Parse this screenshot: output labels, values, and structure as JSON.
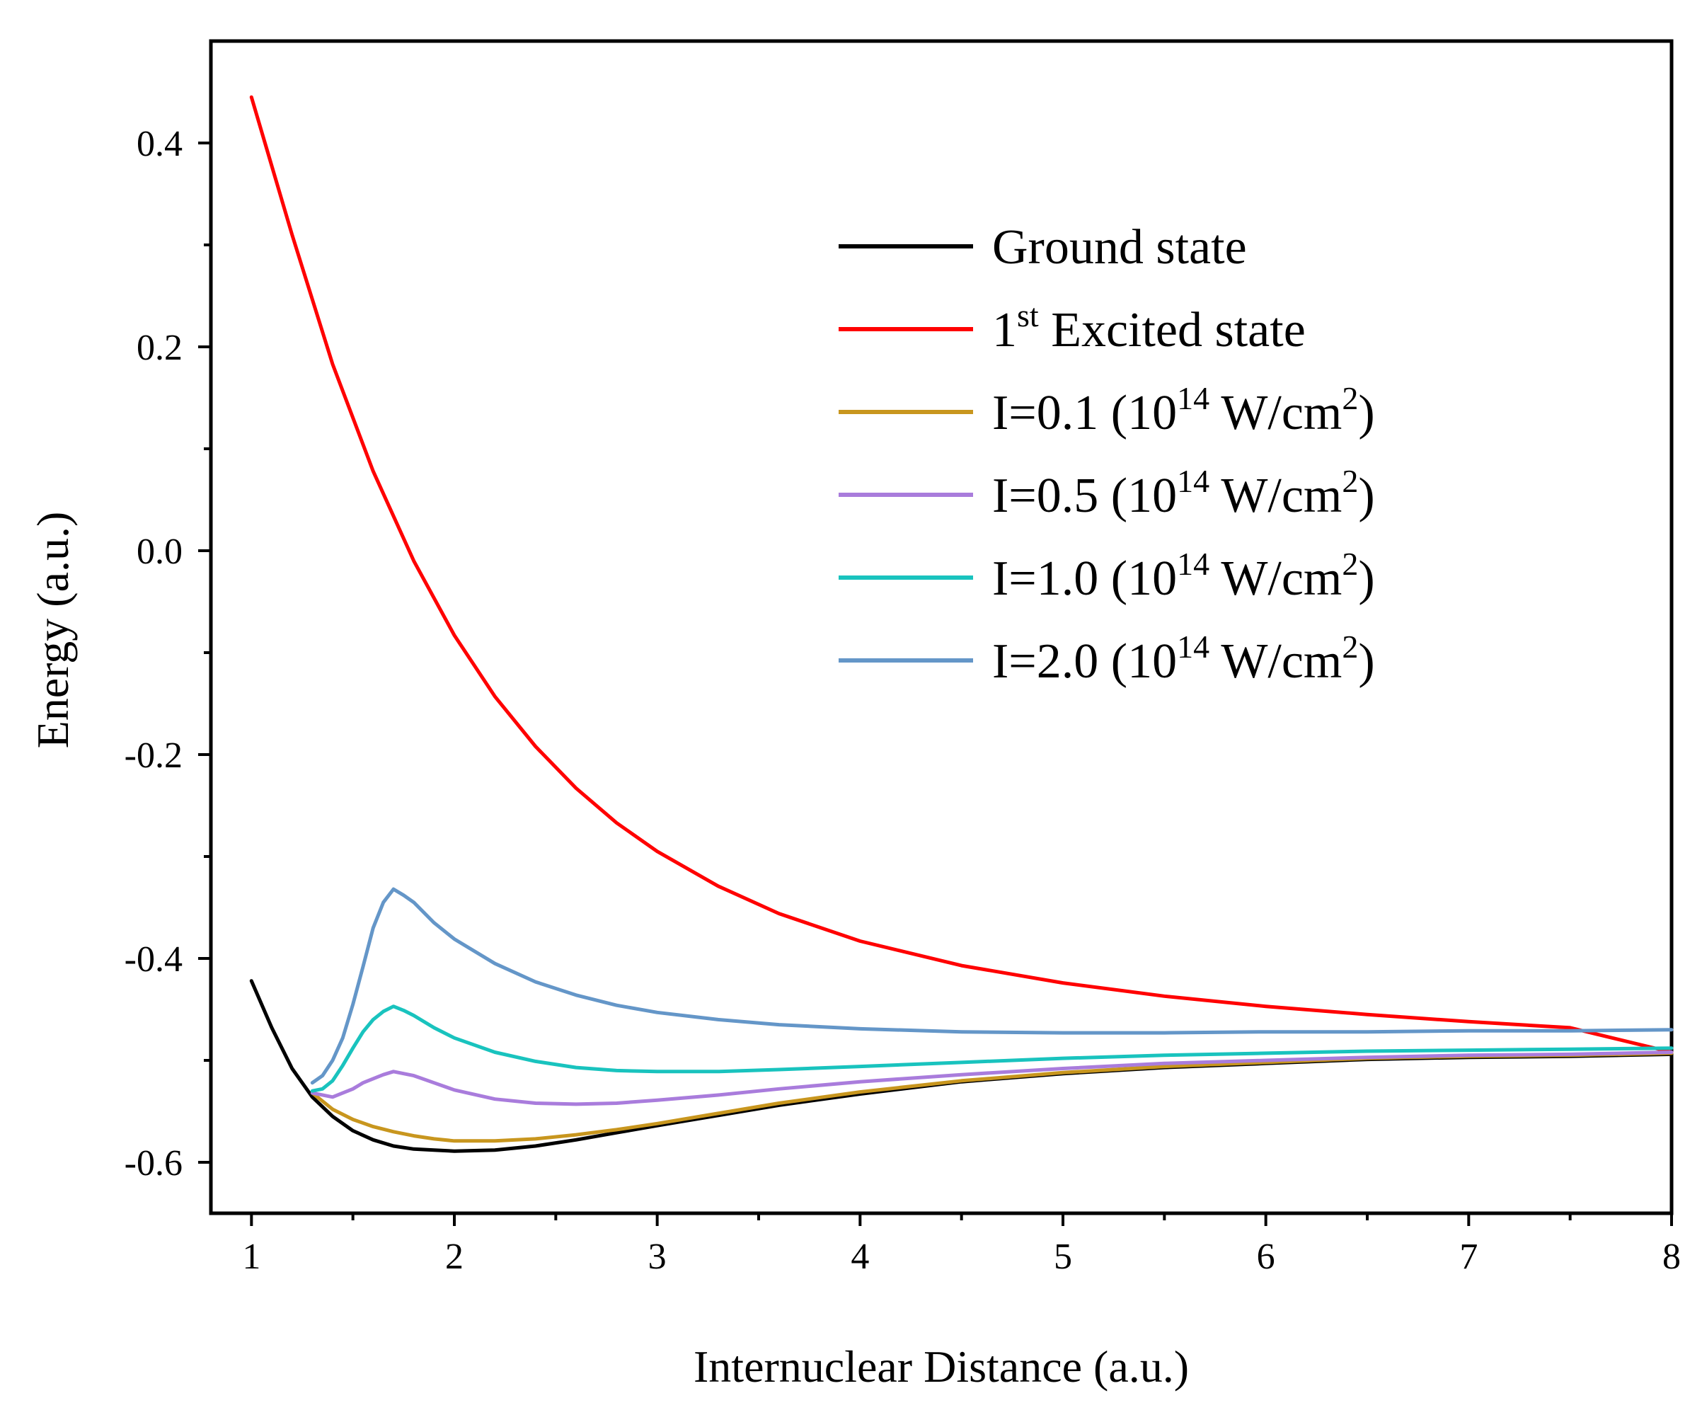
{
  "chart_data": {
    "type": "line",
    "title": "",
    "xlabel": "Internuclear Distance (a.u.)",
    "ylabel": "Energy (a.u.)",
    "xlim": [
      0.8,
      8.0
    ],
    "ylim": [
      -0.65,
      0.5
    ],
    "xticks": [
      1,
      2,
      3,
      4,
      5,
      6,
      7,
      8
    ],
    "xtick_labels": [
      "1",
      "2",
      "3",
      "4",
      "5",
      "6",
      "7",
      "8"
    ],
    "yticks": [
      -0.6,
      -0.4,
      -0.2,
      0.0,
      0.2,
      0.4
    ],
    "ytick_labels": [
      "-0.6",
      "-0.4",
      "-0.2",
      "0.0",
      "0.2",
      "0.4"
    ],
    "grid": false,
    "legend_position": "top-right",
    "series": [
      {
        "name": "Ground state",
        "legend": {
          "main": "Ground state",
          "sup": "",
          "after": ""
        },
        "color": "#000000",
        "points": [
          [
            1.0,
            -0.422
          ],
          [
            1.1,
            -0.468
          ],
          [
            1.2,
            -0.508
          ],
          [
            1.3,
            -0.536
          ],
          [
            1.4,
            -0.555
          ],
          [
            1.5,
            -0.569
          ],
          [
            1.6,
            -0.578
          ],
          [
            1.7,
            -0.584
          ],
          [
            1.8,
            -0.587
          ],
          [
            1.9,
            -0.588
          ],
          [
            2.0,
            -0.589
          ],
          [
            2.2,
            -0.588
          ],
          [
            2.4,
            -0.584
          ],
          [
            2.6,
            -0.578
          ],
          [
            2.8,
            -0.571
          ],
          [
            3.0,
            -0.564
          ],
          [
            3.3,
            -0.554
          ],
          [
            3.6,
            -0.544
          ],
          [
            4.0,
            -0.533
          ],
          [
            4.5,
            -0.521
          ],
          [
            5.0,
            -0.513
          ],
          [
            5.5,
            -0.507
          ],
          [
            6.0,
            -0.503
          ],
          [
            6.5,
            -0.499
          ],
          [
            7.0,
            -0.497
          ],
          [
            7.5,
            -0.496
          ],
          [
            8.0,
            -0.494
          ]
        ]
      },
      {
        "name": "1st Excited state",
        "legend": {
          "main": "1",
          "sup": "st",
          "after": " Excited state"
        },
        "color": "#ff0000",
        "points": [
          [
            1.0,
            0.445
          ],
          [
            1.2,
            0.31
          ],
          [
            1.4,
            0.183
          ],
          [
            1.6,
            0.078
          ],
          [
            1.8,
            -0.01
          ],
          [
            2.0,
            -0.083
          ],
          [
            2.2,
            -0.143
          ],
          [
            2.4,
            -0.192
          ],
          [
            2.6,
            -0.233
          ],
          [
            2.8,
            -0.267
          ],
          [
            3.0,
            -0.295
          ],
          [
            3.3,
            -0.329
          ],
          [
            3.6,
            -0.356
          ],
          [
            4.0,
            -0.383
          ],
          [
            4.5,
            -0.407
          ],
          [
            5.0,
            -0.424
          ],
          [
            5.5,
            -0.437
          ],
          [
            6.0,
            -0.447
          ],
          [
            6.5,
            -0.455
          ],
          [
            7.0,
            -0.462
          ],
          [
            7.5,
            -0.468
          ],
          [
            8.0,
            -0.492
          ]
        ]
      },
      {
        "name": "I=0.1 (10^14 W/cm^2)",
        "legend": {
          "main": "I=0.1 (10",
          "sup": "14",
          "after": " W/cm",
          "sup2": "2",
          "end": ")"
        },
        "color": "#c8961e",
        "points": [
          [
            1.3,
            -0.532
          ],
          [
            1.4,
            -0.548
          ],
          [
            1.5,
            -0.558
          ],
          [
            1.6,
            -0.565
          ],
          [
            1.7,
            -0.57
          ],
          [
            1.8,
            -0.574
          ],
          [
            1.9,
            -0.577
          ],
          [
            2.0,
            -0.579
          ],
          [
            2.2,
            -0.579
          ],
          [
            2.4,
            -0.577
          ],
          [
            2.6,
            -0.573
          ],
          [
            2.8,
            -0.568
          ],
          [
            3.0,
            -0.562
          ],
          [
            3.3,
            -0.552
          ],
          [
            3.6,
            -0.542
          ],
          [
            4.0,
            -0.531
          ],
          [
            4.5,
            -0.52
          ],
          [
            5.0,
            -0.512
          ],
          [
            5.5,
            -0.506
          ],
          [
            6.0,
            -0.502
          ],
          [
            6.5,
            -0.498
          ],
          [
            7.0,
            -0.496
          ],
          [
            7.5,
            -0.495
          ],
          [
            8.0,
            -0.493
          ]
        ]
      },
      {
        "name": "I=0.5 (10^14 W/cm^2)",
        "legend": {
          "main": "I=0.5 (10",
          "sup": "14",
          "after": " W/cm",
          "sup2": "2",
          "end": ")"
        },
        "color": "#a97cdc",
        "points": [
          [
            1.3,
            -0.532
          ],
          [
            1.4,
            -0.536
          ],
          [
            1.45,
            -0.532
          ],
          [
            1.5,
            -0.528
          ],
          [
            1.55,
            -0.522
          ],
          [
            1.6,
            -0.518
          ],
          [
            1.65,
            -0.514
          ],
          [
            1.7,
            -0.511
          ],
          [
            1.75,
            -0.513
          ],
          [
            1.8,
            -0.515
          ],
          [
            1.9,
            -0.522
          ],
          [
            2.0,
            -0.529
          ],
          [
            2.2,
            -0.538
          ],
          [
            2.4,
            -0.542
          ],
          [
            2.6,
            -0.543
          ],
          [
            2.8,
            -0.542
          ],
          [
            3.0,
            -0.539
          ],
          [
            3.3,
            -0.534
          ],
          [
            3.6,
            -0.528
          ],
          [
            4.0,
            -0.521
          ],
          [
            4.5,
            -0.514
          ],
          [
            5.0,
            -0.508
          ],
          [
            5.5,
            -0.503
          ],
          [
            6.0,
            -0.5
          ],
          [
            6.5,
            -0.497
          ],
          [
            7.0,
            -0.495
          ],
          [
            7.5,
            -0.494
          ],
          [
            8.0,
            -0.492
          ]
        ]
      },
      {
        "name": "I=1.0 (10^14 W/cm^2)",
        "legend": {
          "main": "I=1.0 (10",
          "sup": "14",
          "after": " W/cm",
          "sup2": "2",
          "end": ")"
        },
        "color": "#19c3be",
        "points": [
          [
            1.3,
            -0.53
          ],
          [
            1.35,
            -0.528
          ],
          [
            1.4,
            -0.52
          ],
          [
            1.45,
            -0.505
          ],
          [
            1.5,
            -0.488
          ],
          [
            1.55,
            -0.472
          ],
          [
            1.6,
            -0.46
          ],
          [
            1.65,
            -0.452
          ],
          [
            1.7,
            -0.447
          ],
          [
            1.75,
            -0.451
          ],
          [
            1.8,
            -0.456
          ],
          [
            1.9,
            -0.468
          ],
          [
            2.0,
            -0.478
          ],
          [
            2.2,
            -0.492
          ],
          [
            2.4,
            -0.501
          ],
          [
            2.6,
            -0.507
          ],
          [
            2.8,
            -0.51
          ],
          [
            3.0,
            -0.511
          ],
          [
            3.3,
            -0.511
          ],
          [
            3.6,
            -0.509
          ],
          [
            4.0,
            -0.506
          ],
          [
            4.5,
            -0.502
          ],
          [
            5.0,
            -0.498
          ],
          [
            5.5,
            -0.495
          ],
          [
            6.0,
            -0.493
          ],
          [
            6.5,
            -0.491
          ],
          [
            7.0,
            -0.49
          ],
          [
            7.5,
            -0.489
          ],
          [
            8.0,
            -0.488
          ]
        ]
      },
      {
        "name": "I=2.0 (10^14 W/cm^2)",
        "legend": {
          "main": "I=2.0 (10",
          "sup": "14",
          "after": " W/cm",
          "sup2": "2",
          "end": ")"
        },
        "color": "#6496c8",
        "points": [
          [
            1.3,
            -0.522
          ],
          [
            1.35,
            -0.515
          ],
          [
            1.4,
            -0.5
          ],
          [
            1.45,
            -0.478
          ],
          [
            1.5,
            -0.445
          ],
          [
            1.55,
            -0.408
          ],
          [
            1.6,
            -0.37
          ],
          [
            1.65,
            -0.345
          ],
          [
            1.7,
            -0.332
          ],
          [
            1.75,
            -0.338
          ],
          [
            1.8,
            -0.345
          ],
          [
            1.9,
            -0.365
          ],
          [
            2.0,
            -0.381
          ],
          [
            2.2,
            -0.405
          ],
          [
            2.4,
            -0.423
          ],
          [
            2.6,
            -0.436
          ],
          [
            2.8,
            -0.446
          ],
          [
            3.0,
            -0.453
          ],
          [
            3.3,
            -0.46
          ],
          [
            3.6,
            -0.465
          ],
          [
            4.0,
            -0.469
          ],
          [
            4.5,
            -0.472
          ],
          [
            5.0,
            -0.473
          ],
          [
            5.5,
            -0.473
          ],
          [
            6.0,
            -0.472
          ],
          [
            6.5,
            -0.472
          ],
          [
            7.0,
            -0.471
          ],
          [
            7.5,
            -0.471
          ],
          [
            8.0,
            -0.47
          ]
        ]
      }
    ]
  }
}
